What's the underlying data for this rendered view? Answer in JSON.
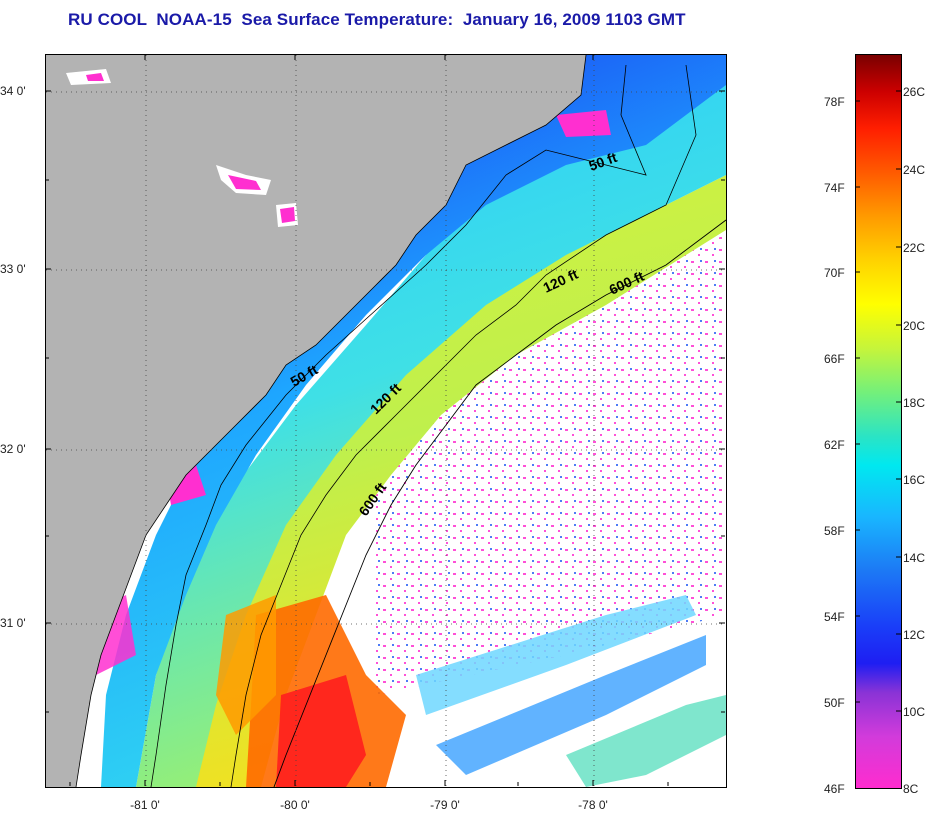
{
  "title": "RU COOL  NOAA-15  Sea Surface Temperature:  January 16, 2009 1103 GMT",
  "map": {
    "latitude_labels": [
      "34 0'",
      "33 0'",
      "32 0'",
      "31 0'"
    ],
    "longitude_labels": [
      "-81 0'",
      "-80 0'",
      "-79 0'",
      "-78 0'"
    ],
    "isobath_labels": [
      "50 ft",
      "120 ft",
      "600 ft",
      "50 ft",
      "120 ft",
      "600 ft"
    ],
    "colors": {
      "land": "#b3b3b3",
      "cloud": "#ffffff",
      "isobath": "#000000",
      "grid": "#555555"
    }
  },
  "colorbar": {
    "fahrenheit_labels": [
      "78F",
      "74F",
      "70F",
      "66F",
      "62F",
      "58F",
      "54F",
      "50F",
      "46F"
    ],
    "celsius_labels": [
      "26C",
      "24C",
      "22C",
      "20C",
      "18C",
      "16C",
      "14C",
      "12C",
      "10C",
      "8C"
    ],
    "range_celsius": [
      8,
      27
    ]
  }
}
